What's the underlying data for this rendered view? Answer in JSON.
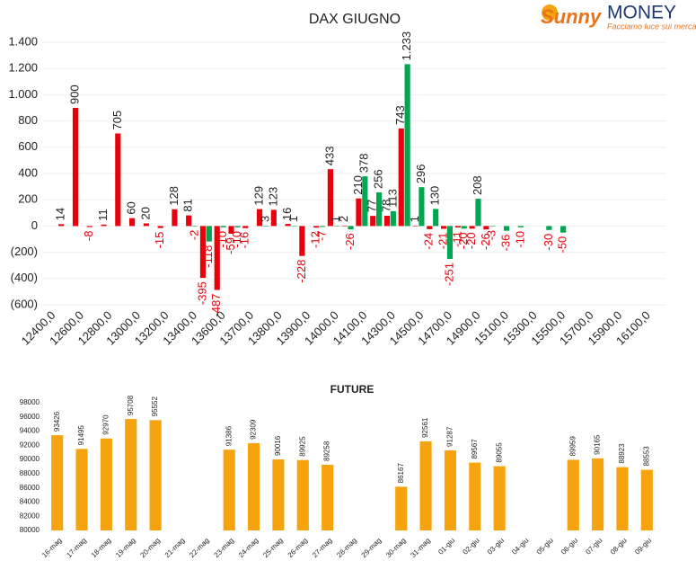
{
  "logo": {
    "brand1": "Sunny",
    "brand2": "MONEY",
    "tagline": "Facciamo luce sui mercati"
  },
  "chart_data": [
    {
      "type": "bar",
      "title": "DAX GIUGNO",
      "categories": [
        "12400,0",
        null,
        "12600,0",
        null,
        "12800,0",
        null,
        "13000,0",
        null,
        "13200,0",
        null,
        "13400,0",
        null,
        "13600,0",
        null,
        "13700,0",
        null,
        "13800,0",
        null,
        "13900,0",
        null,
        "14000,0",
        null,
        "14100,0",
        null,
        "14300,0",
        null,
        "14500,0",
        null,
        "14700,0",
        null,
        "14900,0",
        null,
        "15100,0",
        null,
        "15300,0",
        null,
        "15500,0",
        null,
        "15700,0",
        null,
        "15900,0",
        null,
        "16100,0",
        null
      ],
      "series": [
        {
          "name": null,
          "color": "#e8000b",
          "values": [
            null,
            14,
            900,
            -8,
            11,
            705,
            60,
            20,
            -15,
            128,
            81,
            -395,
            -487,
            -59,
            -16,
            129,
            123,
            16,
            -228,
            -12,
            433,
            2,
            210,
            77,
            78,
            743,
            1,
            -24,
            -21,
            -11,
            -20,
            -26,
            null,
            null,
            null,
            null,
            null,
            null,
            null,
            null,
            null,
            null,
            null,
            null
          ]
        },
        {
          "name": null,
          "color": "#00a650",
          "values": [
            null,
            null,
            null,
            null,
            null,
            null,
            null,
            null,
            null,
            null,
            -2,
            -118,
            -10,
            -10,
            null,
            3,
            null,
            1,
            null,
            -7,
            1,
            -26,
            378,
            256,
            113,
            1233,
            296,
            130,
            -251,
            -20,
            208,
            -3,
            -36,
            -10,
            null,
            -30,
            -50,
            null,
            null,
            null,
            null,
            null,
            null,
            null
          ],
          "value_labels": [
            null,
            null,
            null,
            null,
            null,
            null,
            null,
            null,
            null,
            null,
            "-2",
            "-118",
            "-10",
            "-10",
            null,
            "3",
            null,
            "1",
            null,
            "-7",
            "1",
            "-26",
            "378",
            "256",
            "113",
            "1.233",
            "296",
            "130",
            "-251",
            "-20",
            "208",
            "-3",
            "-36",
            "-10",
            null,
            "-30",
            "-50",
            null,
            null,
            null,
            null,
            null,
            null,
            null
          ]
        }
      ],
      "ylim": [
        -600,
        1400
      ],
      "yticks": [
        {
          "value": -600,
          "label": "(600)"
        },
        {
          "value": -400,
          "label": "(400)"
        },
        {
          "value": -200,
          "label": "(200)"
        },
        0,
        200,
        400,
        600,
        800,
        {
          "value": 1000,
          "label": "1.000"
        },
        {
          "value": 1200,
          "label": "1.200"
        },
        {
          "value": 1400,
          "label": "1.400"
        }
      ],
      "grid": true
    },
    {
      "type": "bar",
      "title": "FUTURE",
      "color": "#f5a30f",
      "categories": [
        "16-mag",
        "17-mag",
        "18-mag",
        "19-mag",
        "20-mag",
        "21-mag",
        "22-mag",
        "23-mag",
        "24-mag",
        "25-mag",
        "26-mag",
        "27-mag",
        "28-mag",
        "29-mag",
        "30-mag",
        "31-mag",
        "01-giu",
        "02-giu",
        "03-giu",
        "04-giu",
        "05-giu",
        "06-giu",
        "07-giu",
        "08-giu",
        "09-giu"
      ],
      "values": [
        93426,
        91495,
        92970,
        95708,
        95552,
        null,
        null,
        91386,
        92309,
        90016,
        89925,
        89258,
        null,
        null,
        86167,
        92561,
        91287,
        89567,
        89055,
        null,
        null,
        89959,
        90165,
        88923,
        88553
      ],
      "ylim": [
        80000,
        98000
      ],
      "yticks": [
        80000,
        82000,
        84000,
        86000,
        88000,
        90000,
        92000,
        94000,
        96000,
        98000
      ],
      "grid": false
    }
  ]
}
